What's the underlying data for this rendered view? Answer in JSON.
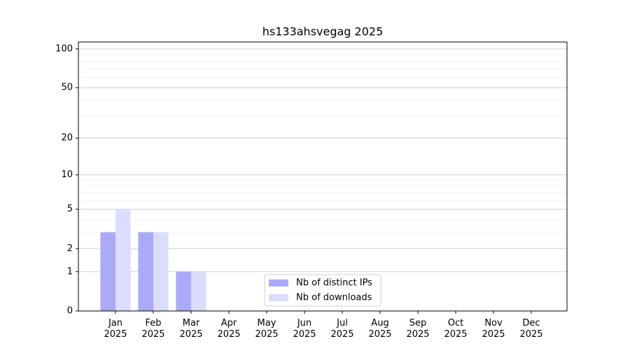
{
  "chart_data": {
    "type": "bar",
    "title": "hs133ahsvegag 2025",
    "categories": [
      "Jan 2025",
      "Feb 2025",
      "Mar 2025",
      "Apr 2025",
      "May 2025",
      "Jun 2025",
      "Jul 2025",
      "Aug 2025",
      "Sep 2025",
      "Oct 2025",
      "Nov 2025",
      "Dec 2025"
    ],
    "series": [
      {
        "name": "Nb of distinct IPs",
        "color": "#aaaaf8",
        "values": [
          3,
          3,
          1,
          0,
          0,
          0,
          0,
          0,
          0,
          0,
          0,
          0
        ]
      },
      {
        "name": "Nb of downloads",
        "color": "#dcdcfc",
        "values": [
          5,
          3,
          1,
          0,
          0,
          0,
          0,
          0,
          0,
          0,
          0,
          0
        ]
      }
    ],
    "ylim": [
      0,
      113
    ],
    "yticks": [
      0,
      1,
      2,
      5,
      10,
      20,
      50,
      100
    ],
    "yscale": "log1p",
    "grid": true,
    "legend": "lower center"
  }
}
